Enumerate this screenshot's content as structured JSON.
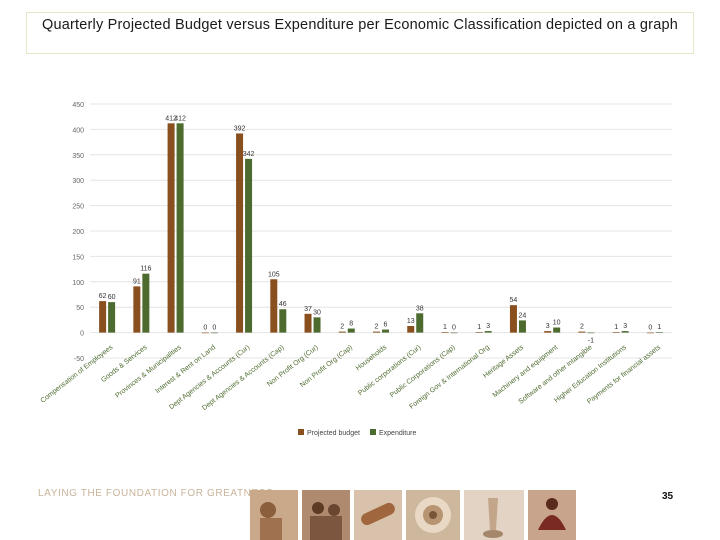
{
  "page": {
    "title": "Quarterly Projected Budget versus Expenditure per Economic Classification depicted on a graph",
    "footer": "LAYING THE FOUNDATION FOR GREATNESS",
    "page_number": "35"
  },
  "colors": {
    "budget": "#8a4f1e",
    "expenditure": "#4e6b2f",
    "grid": "#e4e4e4",
    "axis_text": "#666666"
  },
  "chart_data": {
    "type": "bar",
    "title": "",
    "ylim": [
      -50,
      450
    ],
    "yticks": [
      -50,
      0,
      50,
      100,
      150,
      200,
      250,
      300,
      350,
      400,
      450
    ],
    "categories": [
      "Compensation of Employees",
      "Goods & Services",
      "Provinces & Municipalities",
      "Interest & Rent on Land",
      "Dept Agencies & Accounts (Cur)",
      "Dept Agencies & Accounts (Cap)",
      "Non Profit Org (Cur)",
      "Non Profit Org (Cap)",
      "Households",
      "Public corporations (Cur)",
      "Public Corporations (Cap)",
      "Foreign Gov & International Org",
      "Heritage Assets",
      "Machinery and equipment",
      "Software and other intangible",
      "Higher Education Institutions",
      "Payments for financial assets"
    ],
    "series": [
      {
        "name": "Projected budget",
        "values": [
          62,
          91,
          412,
          0,
          392,
          105,
          37,
          2,
          2,
          13,
          1,
          1,
          54,
          3,
          2,
          1,
          0
        ]
      },
      {
        "name": "Expenditure",
        "values": [
          60,
          116,
          412,
          0,
          342,
          46,
          30,
          8,
          6,
          38,
          0,
          3,
          24,
          10,
          -1,
          3,
          1
        ]
      }
    ],
    "legend": "bottom"
  }
}
